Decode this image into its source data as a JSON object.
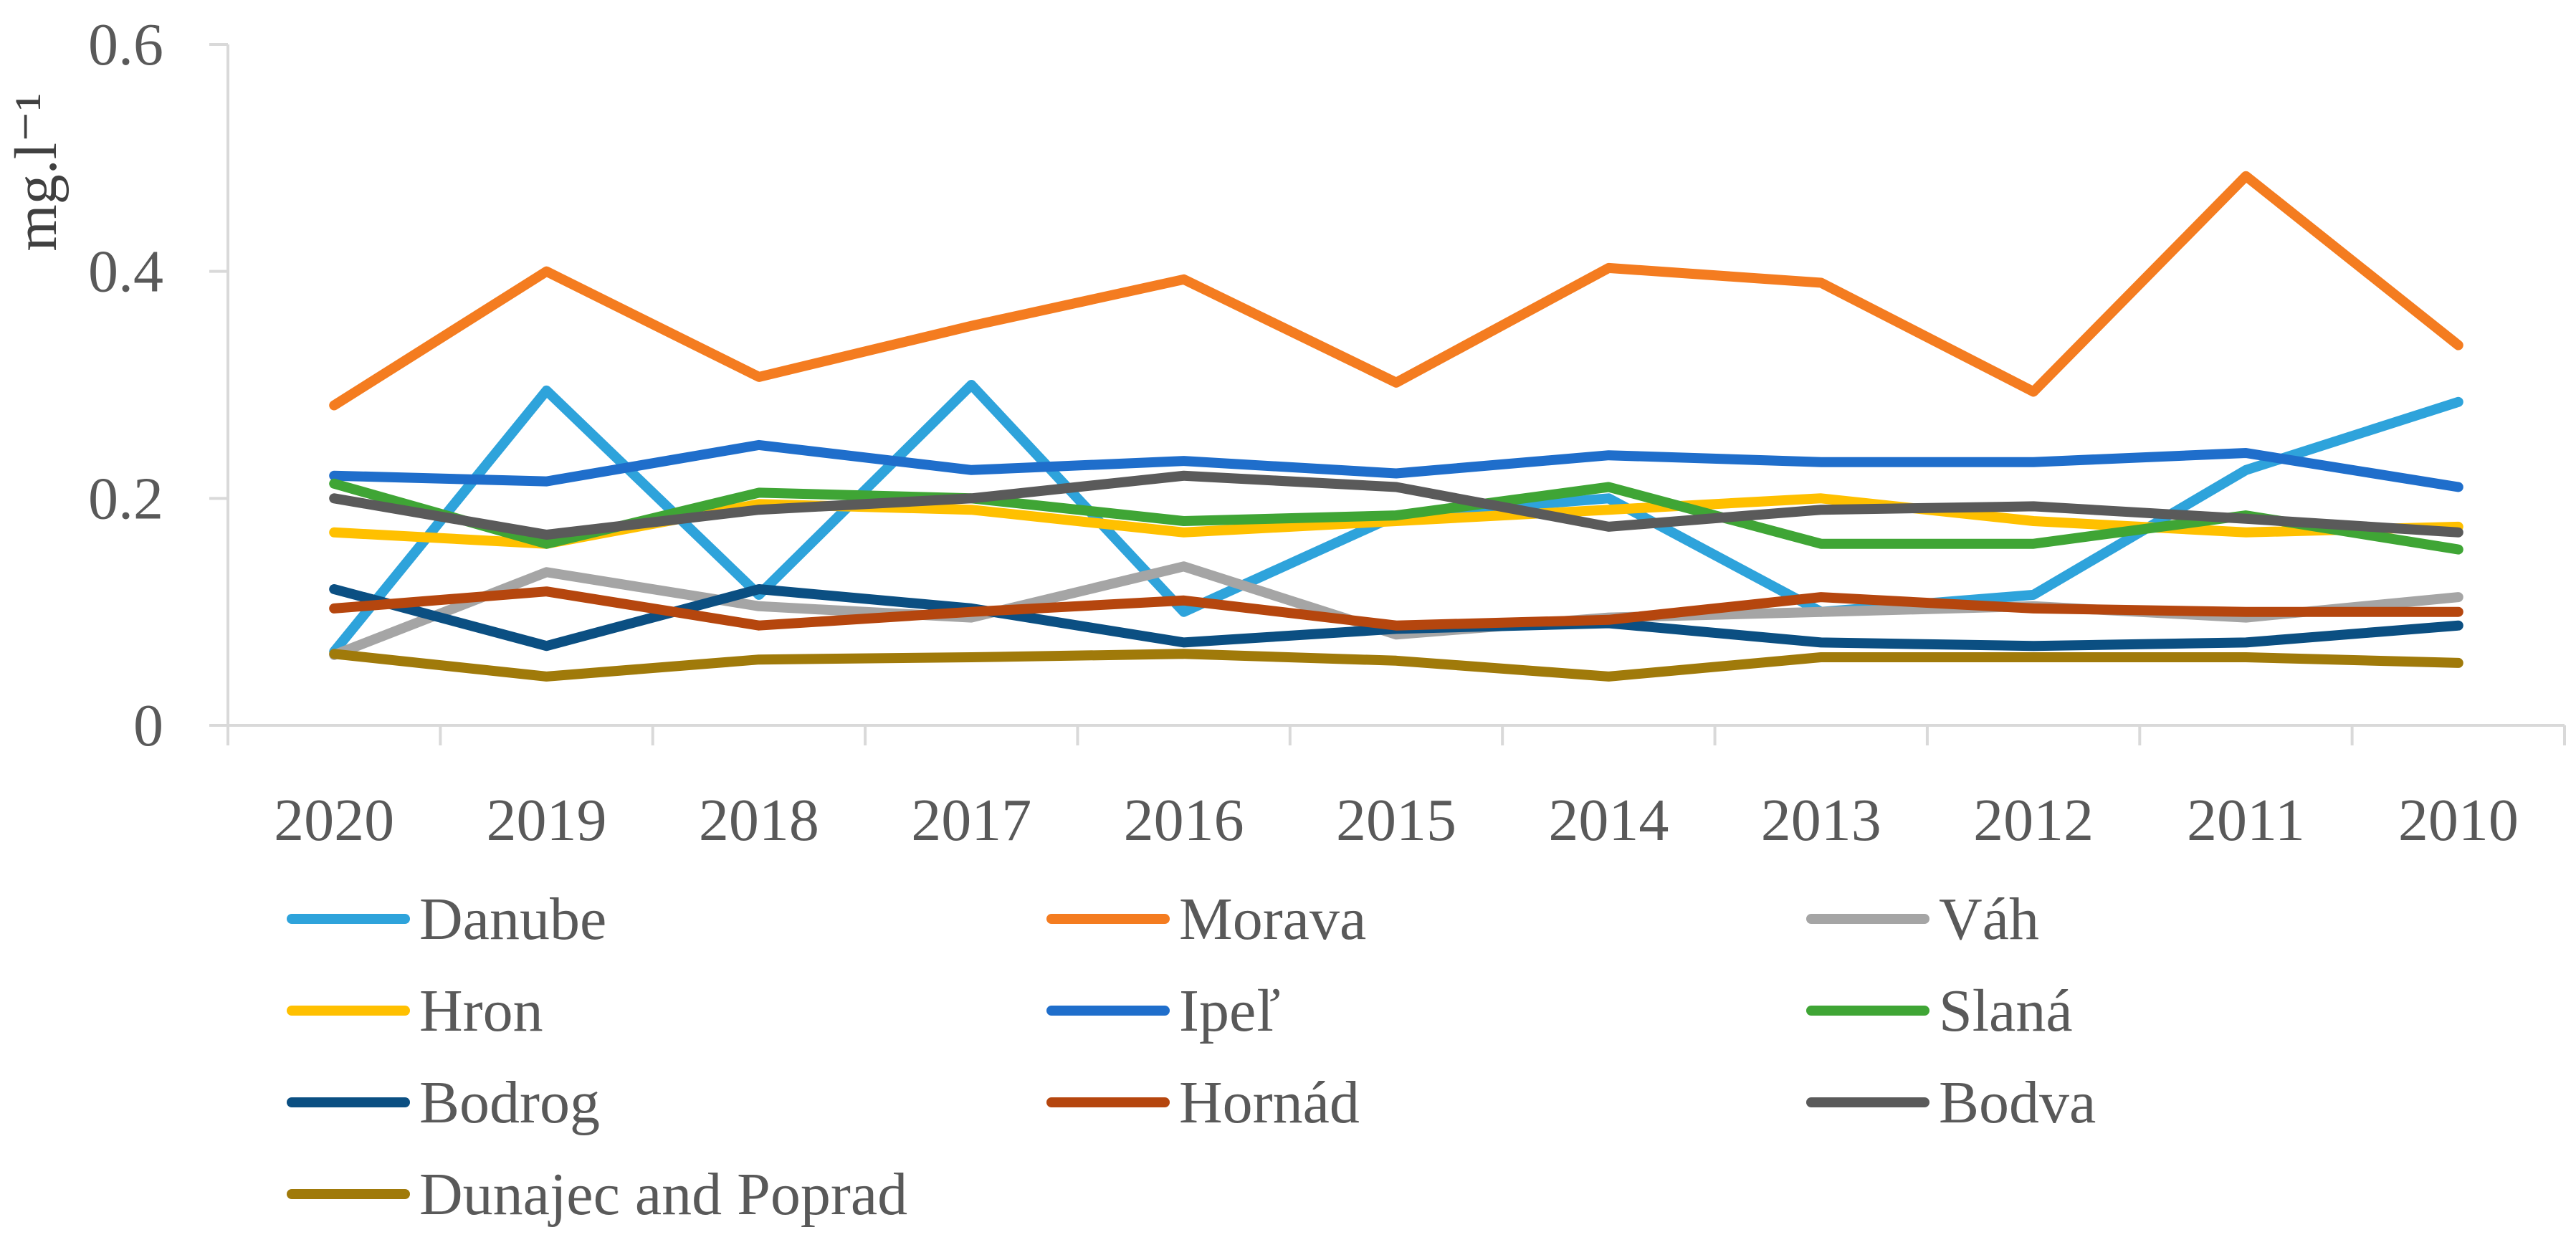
{
  "chart_data": {
    "type": "line",
    "title": "",
    "xlabel": "",
    "ylabel": "mg.l⁻¹",
    "ylim": [
      0,
      0.6
    ],
    "yticks": [
      "0",
      "0.2",
      "0.4",
      "0.6"
    ],
    "grid": false,
    "legend_position": "bottom",
    "categories": [
      "2020",
      "2019",
      "2018",
      "2017",
      "2016",
      "2015",
      "2014",
      "2013",
      "2012",
      "2011",
      "2010"
    ],
    "series": [
      {
        "name": "Danube",
        "color": "#2EA3DB",
        "values": [
          0.065,
          0.295,
          0.115,
          0.3,
          0.1,
          0.185,
          0.2,
          0.1,
          0.115,
          0.225,
          0.285
        ]
      },
      {
        "name": "Morava",
        "color": "#F47C20",
        "values": [
          0.282,
          0.4,
          0.307,
          0.352,
          0.393,
          0.302,
          0.403,
          0.39,
          0.294,
          0.484,
          0.335
        ]
      },
      {
        "name": "Váh",
        "color": "#A5A5A5",
        "values": [
          0.062,
          0.135,
          0.105,
          0.095,
          0.14,
          0.08,
          0.095,
          0.1,
          0.105,
          0.095,
          0.113
        ]
      },
      {
        "name": "Hron",
        "color": "#FFC000",
        "values": [
          0.17,
          0.16,
          0.195,
          0.19,
          0.17,
          0.18,
          0.19,
          0.2,
          0.18,
          0.17,
          0.175
        ]
      },
      {
        "name": "Ipeľ",
        "color": "#1F6ECB",
        "values": [
          0.22,
          0.215,
          0.247,
          0.225,
          0.233,
          0.222,
          0.238,
          0.232,
          0.232,
          0.24,
          0.21
        ]
      },
      {
        "name": "Slaná",
        "color": "#3FA535",
        "values": [
          0.213,
          0.16,
          0.205,
          0.2,
          0.18,
          0.185,
          0.21,
          0.16,
          0.16,
          0.185,
          0.155
        ]
      },
      {
        "name": "Bodrog",
        "color": "#0B4F82",
        "values": [
          0.12,
          0.07,
          0.12,
          0.103,
          0.073,
          0.085,
          0.09,
          0.073,
          0.07,
          0.073,
          0.088
        ]
      },
      {
        "name": "Hornád",
        "color": "#B5460E",
        "values": [
          0.103,
          0.118,
          0.088,
          0.1,
          0.11,
          0.088,
          0.093,
          0.113,
          0.103,
          0.1,
          0.1
        ]
      },
      {
        "name": "Bodva",
        "color": "#5A5A5A",
        "values": [
          0.2,
          0.168,
          0.19,
          0.2,
          0.22,
          0.21,
          0.175,
          0.19,
          0.193,
          0.182,
          0.17
        ]
      },
      {
        "name": "Dunajec and Poprad",
        "color": "#A07A0A",
        "values": [
          0.063,
          0.043,
          0.058,
          0.06,
          0.063,
          0.057,
          0.043,
          0.06,
          0.06,
          0.06,
          0.055
        ]
      }
    ]
  }
}
